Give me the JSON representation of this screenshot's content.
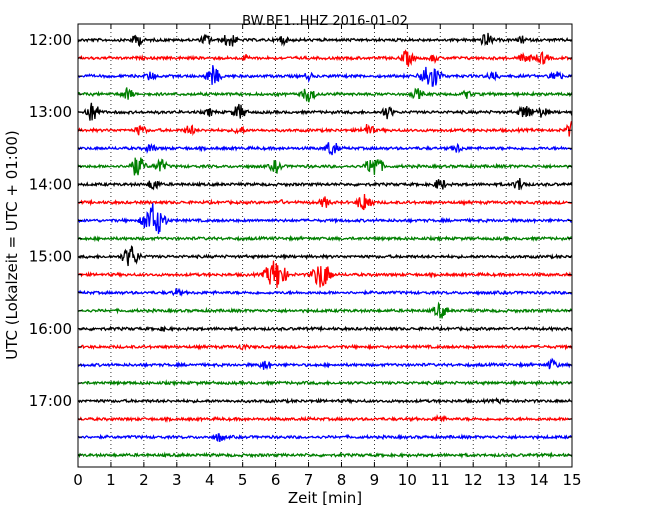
{
  "chart_data": {
    "type": "line",
    "title": "BW.BE1..HHZ 2016-01-02",
    "xlabel": "Zeit  [min]",
    "ylabel": "UTC (Lokalzeit = UTC + 01:00)",
    "xlim": [
      0,
      15
    ],
    "x_ticks": [
      "0",
      "1",
      "2",
      "3",
      "4",
      "5",
      "6",
      "7",
      "8",
      "9",
      "10",
      "11",
      "12",
      "13",
      "14",
      "15"
    ],
    "y_ticks": [
      "12:00",
      "13:00",
      "14:00",
      "15:00",
      "16:00",
      "17:00"
    ],
    "grid": "vertical dotted",
    "series_colors": [
      "#000000",
      "#ff0000",
      "#0000ff",
      "#008000"
    ],
    "traces": [
      {
        "start": "12:00",
        "events": [
          [
            1.8,
            0.35
          ],
          [
            3.9,
            0.3
          ],
          [
            4.6,
            0.45
          ],
          [
            6.2,
            0.25
          ],
          [
            12.4,
            0.4
          ],
          [
            13.5,
            0.2
          ]
        ]
      },
      {
        "start": "12:15",
        "events": [
          [
            5.1,
            0.15
          ],
          [
            10.0,
            0.45
          ],
          [
            10.8,
            0.2
          ],
          [
            13.6,
            0.35
          ],
          [
            14.1,
            0.35
          ]
        ]
      },
      {
        "start": "12:30",
        "events": [
          [
            2.2,
            0.25
          ],
          [
            4.1,
            0.55
          ],
          [
            7.0,
            0.2
          ],
          [
            10.7,
            0.85
          ],
          [
            12.6,
            0.3
          ],
          [
            14.5,
            0.35
          ]
        ]
      },
      {
        "start": "12:45",
        "events": [
          [
            1.5,
            0.35
          ],
          [
            7.0,
            0.45
          ],
          [
            10.3,
            0.3
          ],
          [
            11.8,
            0.2
          ]
        ]
      },
      {
        "start": "13:00",
        "events": [
          [
            0.45,
            0.55
          ],
          [
            4.0,
            0.2
          ],
          [
            4.9,
            0.45
          ],
          [
            9.4,
            0.35
          ],
          [
            13.6,
            0.45
          ],
          [
            14.1,
            0.3
          ]
        ]
      },
      {
        "start": "13:15",
        "events": [
          [
            1.9,
            0.3
          ],
          [
            3.4,
            0.3
          ],
          [
            4.9,
            0.25
          ],
          [
            8.8,
            0.35
          ],
          [
            15.0,
            0.45
          ]
        ]
      },
      {
        "start": "13:30",
        "events": [
          [
            2.2,
            0.25
          ],
          [
            7.7,
            0.45
          ],
          [
            11.5,
            0.25
          ]
        ]
      },
      {
        "start": "13:45",
        "events": [
          [
            1.8,
            0.6
          ],
          [
            2.5,
            0.4
          ],
          [
            6.0,
            0.35
          ],
          [
            9.0,
            0.65
          ]
        ]
      },
      {
        "start": "14:00",
        "events": [
          [
            2.3,
            0.35
          ],
          [
            11.0,
            0.35
          ],
          [
            13.4,
            0.35
          ]
        ]
      },
      {
        "start": "14:15",
        "events": [
          [
            6.1,
            0.15
          ],
          [
            7.5,
            0.3
          ],
          [
            8.7,
            0.55
          ]
        ]
      },
      {
        "start": "14:30",
        "events": [
          [
            2.3,
            1.0
          ]
        ]
      },
      {
        "start": "14:45",
        "events": []
      },
      {
        "start": "15:00",
        "events": [
          [
            1.6,
            0.65
          ]
        ]
      },
      {
        "start": "15:15",
        "events": [
          [
            6.0,
            0.9
          ],
          [
            7.4,
            0.8
          ]
        ]
      },
      {
        "start": "15:30",
        "events": [
          [
            3.0,
            0.2
          ]
        ]
      },
      {
        "start": "15:45",
        "events": [
          [
            11.0,
            0.45
          ]
        ]
      },
      {
        "start": "16:00",
        "events": [
          [
            2.6,
            0.1
          ]
        ]
      },
      {
        "start": "16:15",
        "events": [
          [
            5.0,
            0.15
          ]
        ]
      },
      {
        "start": "16:30",
        "events": [
          [
            5.7,
            0.3
          ],
          [
            14.4,
            0.3
          ]
        ]
      },
      {
        "start": "16:45",
        "events": []
      },
      {
        "start": "17:00",
        "events": [
          [
            12.8,
            0.1
          ]
        ]
      },
      {
        "start": "17:15",
        "events": [
          [
            11.0,
            0.2
          ]
        ]
      },
      {
        "start": "17:30",
        "events": [
          [
            4.3,
            0.25
          ]
        ]
      },
      {
        "start": "17:45",
        "events": []
      }
    ]
  }
}
